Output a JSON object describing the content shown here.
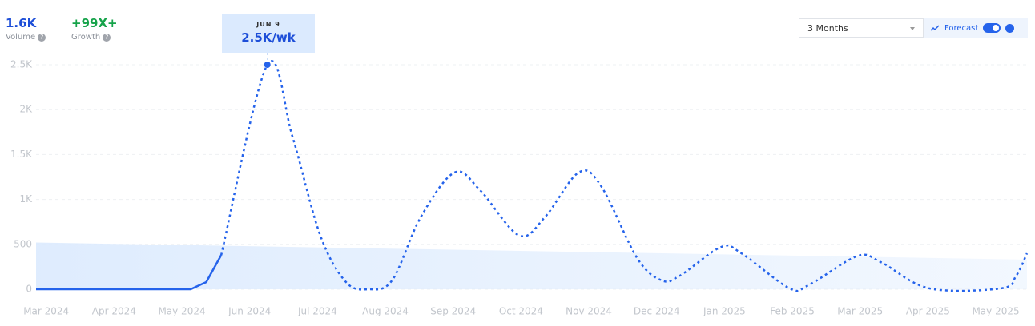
{
  "header": {
    "volume": "1.6K",
    "volume_label": "Volume",
    "growth": "+99X+",
    "growth_label": "Growth"
  },
  "controls": {
    "range": "3 Months",
    "forecast": "Forecast"
  },
  "tooltip": {
    "date": "JUN 9",
    "value": "2.5K/wk"
  },
  "chart_data": {
    "type": "line",
    "xlim": [
      -0.15,
      14.46
    ],
    "ylim": [
      0,
      2500
    ],
    "xticks": [
      {
        "value": 0,
        "label": "Mar 2024"
      },
      {
        "value": 1,
        "label": "Apr 2024"
      },
      {
        "value": 2,
        "label": "May 2024"
      },
      {
        "value": 3,
        "label": "Jun 2024"
      },
      {
        "value": 4,
        "label": "Jul 2024"
      },
      {
        "value": 5,
        "label": "Aug 2024"
      },
      {
        "value": 6,
        "label": "Sep 2024"
      },
      {
        "value": 7,
        "label": "Oct 2024"
      },
      {
        "value": 8,
        "label": "Nov 2024"
      },
      {
        "value": 9,
        "label": "Dec 2024"
      },
      {
        "value": 10,
        "label": "Jan 2025"
      },
      {
        "value": 11,
        "label": "Feb 2025"
      },
      {
        "value": 12,
        "label": "Mar 2025"
      },
      {
        "value": 13,
        "label": "Apr 2025"
      },
      {
        "value": 14,
        "label": "May 2025"
      }
    ],
    "yticks": [
      0,
      500,
      {
        "value": 1000,
        "label": "1K"
      },
      {
        "value": 1500,
        "label": "1.5K"
      },
      {
        "value": 2000,
        "label": "2K"
      },
      {
        "value": 2500,
        "label": "2.5K"
      }
    ],
    "grid": true,
    "trend": {
      "x": [
        -0.15,
        14.46
      ],
      "values": [
        520,
        330
      ],
      "color": "#dbeafe"
    },
    "series": [
      {
        "color": "#2563eb",
        "dashed": false,
        "x": [
          -0.15,
          2.13,
          2.36,
          2.58
        ],
        "values": [
          0,
          0,
          80,
          380
        ]
      },
      {
        "color": "#2563eb",
        "dashed": true,
        "x": [
          2.58,
          3.26,
          3.63,
          4.04,
          4.42,
          4.75,
          5.1,
          5.52,
          6.02,
          6.4,
          6.97,
          7.35,
          7.85,
          8.18,
          8.71,
          9.07,
          9.34,
          9.95,
          10.25,
          10.96,
          11.25,
          11.96,
          12.31,
          13.02,
          14.08,
          14.3,
          14.46
        ],
        "values": [
          380,
          2500,
          1700,
          600,
          80,
          0,
          100,
          800,
          1300,
          1100,
          600,
          800,
          1300,
          1150,
          350,
          100,
          150,
          470,
          400,
          10,
          50,
          370,
          300,
          10,
          10,
          150,
          400
        ]
      }
    ]
  }
}
